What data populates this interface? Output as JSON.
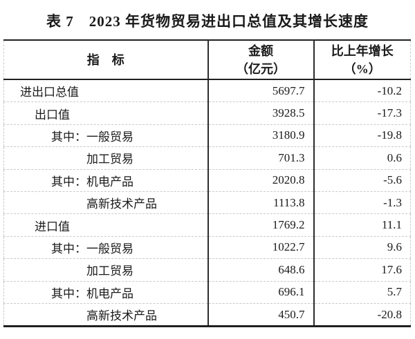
{
  "page": {
    "title": "表 7　2023 年货物贸易进出口总值及其增长速度"
  },
  "table": {
    "columns": [
      {
        "id": "indicator",
        "line1": "指　标",
        "line2": ""
      },
      {
        "id": "amount",
        "line1": "金额",
        "line2": "（亿元）"
      },
      {
        "id": "growth",
        "line1": "比上年增长",
        "line2": "（%）"
      }
    ],
    "rows": [
      {
        "indent": 1,
        "indicator": "进出口总值",
        "amount": "5697.7",
        "growth": "-10.2"
      },
      {
        "indent": 2,
        "indicator": "出口值",
        "amount": "3928.5",
        "growth": "-17.3"
      },
      {
        "indent": 3,
        "indicator": "其中：一般贸易",
        "amount": "3180.9",
        "growth": "-19.8"
      },
      {
        "indent": 4,
        "indicator": "加工贸易",
        "amount": "701.3",
        "growth": "0.6"
      },
      {
        "indent": 3,
        "indicator": "其中：机电产品",
        "amount": "2020.8",
        "growth": "-5.6"
      },
      {
        "indent": 4,
        "indicator": "高新技术产品",
        "amount": "1113.8",
        "growth": "-1.3"
      },
      {
        "indent": 2,
        "indicator": "进口值",
        "amount": "1769.2",
        "growth": "11.1"
      },
      {
        "indent": 3,
        "indicator": "其中：一般贸易",
        "amount": "1022.7",
        "growth": "9.6"
      },
      {
        "indent": 4,
        "indicator": "加工贸易",
        "amount": "648.6",
        "growth": "17.6"
      },
      {
        "indent": 3,
        "indicator": "其中：机电产品",
        "amount": "696.1",
        "growth": "5.7"
      },
      {
        "indent": 4,
        "indicator": "高新技术产品",
        "amount": "450.7",
        "growth": "-20.8"
      }
    ],
    "colors": {
      "text": "#1a1a1a",
      "border_strong": "#1f1f1f",
      "border_column": "#2b2b2b",
      "border_dashed": "#c9c9c9",
      "background": "#ffffff"
    }
  }
}
